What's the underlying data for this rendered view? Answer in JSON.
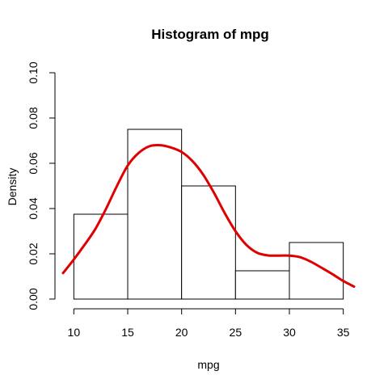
{
  "chart_data": {
    "type": "bar",
    "title": "Histogram of mpg",
    "xlabel": "mpg",
    "ylabel": "Density",
    "xlim": [
      9,
      36
    ],
    "ylim": [
      0,
      0.1
    ],
    "x_ticks": [
      "10",
      "15",
      "20",
      "25",
      "30",
      "35"
    ],
    "y_ticks": [
      "0.00",
      "0.02",
      "0.04",
      "0.06",
      "0.08",
      "0.10"
    ],
    "bins": [
      {
        "from": 10,
        "to": 15,
        "density": 0.0375
      },
      {
        "from": 15,
        "to": 20,
        "density": 0.075
      },
      {
        "from": 20,
        "to": 25,
        "density": 0.05
      },
      {
        "from": 25,
        "to": 30,
        "density": 0.0125
      },
      {
        "from": 30,
        "to": 35,
        "density": 0.025
      }
    ],
    "series": [
      {
        "type": "line",
        "color": "#e00000",
        "x": [
          9,
          10,
          11,
          12,
          13,
          14,
          15,
          16,
          17,
          18,
          19,
          20,
          21,
          22,
          23,
          24,
          25,
          26,
          27,
          28,
          29,
          30,
          31,
          32,
          33,
          34,
          35,
          36
        ],
        "y": [
          0.0115,
          0.0175,
          0.024,
          0.031,
          0.04,
          0.05,
          0.059,
          0.0645,
          0.0675,
          0.068,
          0.067,
          0.065,
          0.061,
          0.055,
          0.047,
          0.038,
          0.03,
          0.024,
          0.0205,
          0.0193,
          0.0192,
          0.0192,
          0.0185,
          0.0165,
          0.0138,
          0.011,
          0.008,
          0.0055
        ]
      }
    ]
  }
}
